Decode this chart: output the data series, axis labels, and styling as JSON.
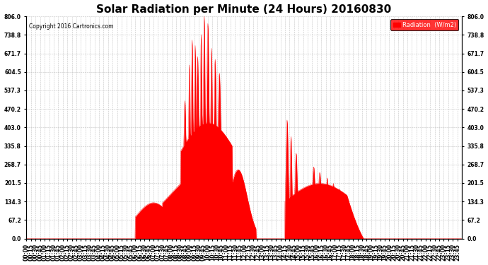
{
  "title": "Solar Radiation per Minute (24 Hours) 20160830",
  "copyright": "Copyright 2016 Cartronics.com",
  "legend_text": "Radiation  (W/m2)",
  "yticks": [
    0.0,
    67.2,
    134.3,
    201.5,
    268.7,
    335.8,
    403.0,
    470.2,
    537.3,
    604.5,
    671.7,
    738.8,
    806.0
  ],
  "ylim": [
    0.0,
    806.0
  ],
  "fill_color": "#ff0000",
  "line_color": "#ff0000",
  "bg_color": "#ffffff",
  "grid_color": "#aaaaaa",
  "dashed_line_color": "#ff0000",
  "legend_bg": "#ff0000",
  "title_fontsize": 11,
  "tick_fontsize": 5.5,
  "minutes_per_day": 1440,
  "xtick_interval": 15,
  "figwidth": 6.9,
  "figheight": 3.75,
  "dpi": 100
}
